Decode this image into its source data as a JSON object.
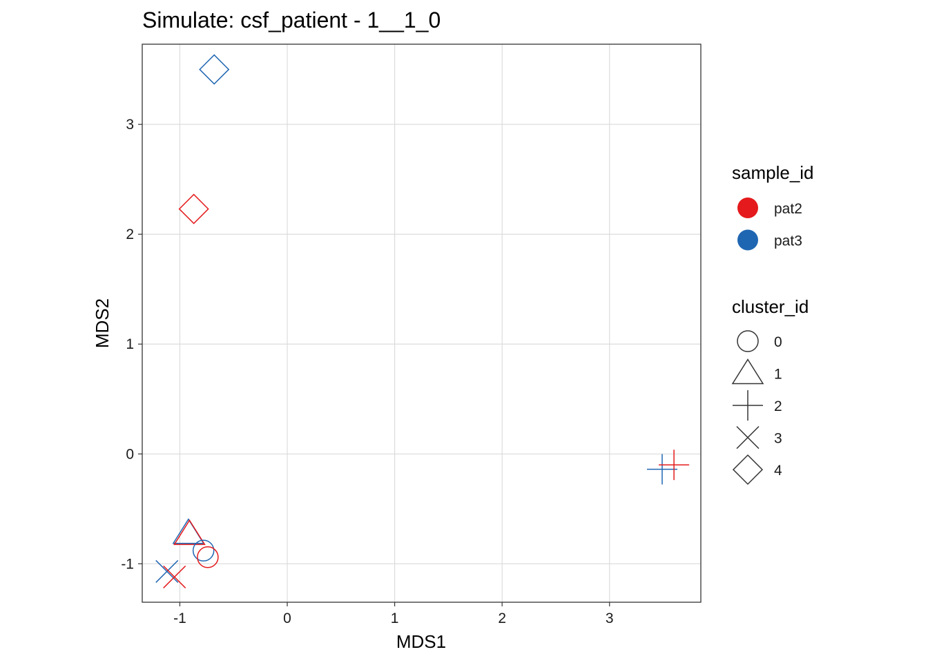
{
  "chart_data": {
    "type": "scatter",
    "title": "Simulate: csf_patient - 1__1_0",
    "xlabel": "MDS1",
    "ylabel": "MDS2",
    "xlim": [
      -1.35,
      3.85
    ],
    "ylim": [
      -1.35,
      3.73
    ],
    "x_ticks": [
      -1,
      0,
      1,
      2,
      3
    ],
    "y_ticks": [
      -1,
      0,
      1,
      2,
      3
    ],
    "x_tick_labels": [
      "-1",
      "0",
      "1",
      "2",
      "3"
    ],
    "y_tick_labels": [
      "-1",
      "0",
      "1",
      "2",
      "3"
    ],
    "grid": true,
    "legend_position": "right",
    "color_legend": {
      "title": "sample_id",
      "entries": [
        {
          "label": "pat2",
          "color": "#E41A1C"
        },
        {
          "label": "pat3",
          "color": "#1F66B2"
        }
      ]
    },
    "shape_legend": {
      "title": "cluster_id",
      "entries": [
        {
          "label": "0",
          "shape": "circle"
        },
        {
          "label": "1",
          "shape": "triangle"
        },
        {
          "label": "2",
          "shape": "plus"
        },
        {
          "label": "3",
          "shape": "cross"
        },
        {
          "label": "4",
          "shape": "diamond"
        }
      ]
    },
    "points": [
      {
        "sample_id": "pat3",
        "cluster_id": "4",
        "x": -0.68,
        "y": 3.5
      },
      {
        "sample_id": "pat2",
        "cluster_id": "4",
        "x": -0.87,
        "y": 2.23
      },
      {
        "sample_id": "pat3",
        "cluster_id": "2",
        "x": 3.49,
        "y": -0.14
      },
      {
        "sample_id": "pat2",
        "cluster_id": "2",
        "x": 3.6,
        "y": -0.1
      },
      {
        "sample_id": "pat3",
        "cluster_id": "1",
        "x": -0.92,
        "y": -0.72
      },
      {
        "sample_id": "pat2",
        "cluster_id": "1",
        "x": -0.91,
        "y": -0.73
      },
      {
        "sample_id": "pat3",
        "cluster_id": "0",
        "x": -0.78,
        "y": -0.88
      },
      {
        "sample_id": "pat2",
        "cluster_id": "0",
        "x": -0.74,
        "y": -0.94
      },
      {
        "sample_id": "pat3",
        "cluster_id": "3",
        "x": -1.12,
        "y": -1.07
      },
      {
        "sample_id": "pat2",
        "cluster_id": "3",
        "x": -1.05,
        "y": -1.12
      }
    ]
  }
}
